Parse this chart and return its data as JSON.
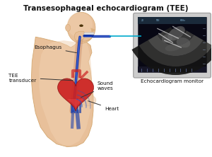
{
  "title": "Transesophageal echocardiogram (TEE)",
  "title_fontsize": 7.5,
  "title_fontweight": "bold",
  "bg_color": "#ffffff",
  "labels": {
    "esophagus": "Esophagus",
    "tee": "TEE\ntransducer",
    "sound_waves": "Sound\nwaves",
    "heart": "Heart",
    "monitor": "Echocardiogram monitor"
  },
  "label_fontsize": 5.2,
  "skin_light": "#f0d0b0",
  "skin_mid": "#e8c09a",
  "skin_dark": "#d4a870",
  "heart_red": "#cc2222",
  "heart_red2": "#ee4444",
  "heart_blue": "#2244aa",
  "heart_dark": "#881111",
  "probe_color": "#1133aa",
  "probe_light": "#4466cc",
  "line_color": "#333333",
  "monitor_outer": "#b0b0b0",
  "monitor_screen": "#0a0a18",
  "teal_line": "#00aacc"
}
